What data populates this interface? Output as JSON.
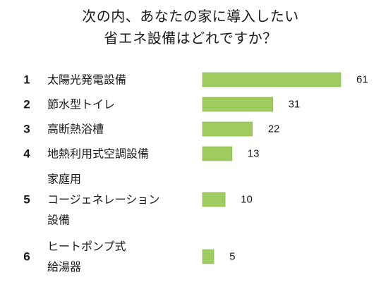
{
  "title": {
    "line1": "次の内、あなたの家に導入したい",
    "line2": "省エネ設備はどれですか？"
  },
  "colors": {
    "bar": "#9fcc5e",
    "bar_edge": "#86b447"
  },
  "chart_data": {
    "type": "bar",
    "orientation": "horizontal",
    "title": "次の内、あなたの家に導入したい 省エネ設備はどれですか？",
    "ranks": [
      "1",
      "2",
      "3",
      "4",
      "5",
      "6"
    ],
    "categories": [
      "太陽光発電設備",
      "節水型トイレ",
      "高断熱浴槽",
      "地熱利用式空調設備",
      "家庭用 コージェネレーション 設備",
      "ヒートポンプ式 給湯器"
    ],
    "category_lines": [
      [
        "太陽光発電設備"
      ],
      [
        "節水型トイレ"
      ],
      [
        "高断熱浴槽"
      ],
      [
        "地熱利用式空調設備"
      ],
      [
        "家庭用",
        "コージェネレーション",
        "設備"
      ],
      [
        "ヒートポンプ式",
        "給湯器"
      ]
    ],
    "values": [
      61,
      31,
      22,
      13,
      10,
      5
    ],
    "value_labels": [
      "61",
      "31",
      "22",
      "13",
      "10",
      "5"
    ],
    "xlim": [
      0,
      61
    ],
    "axes_visible": false,
    "grid": false,
    "legend": "none"
  }
}
